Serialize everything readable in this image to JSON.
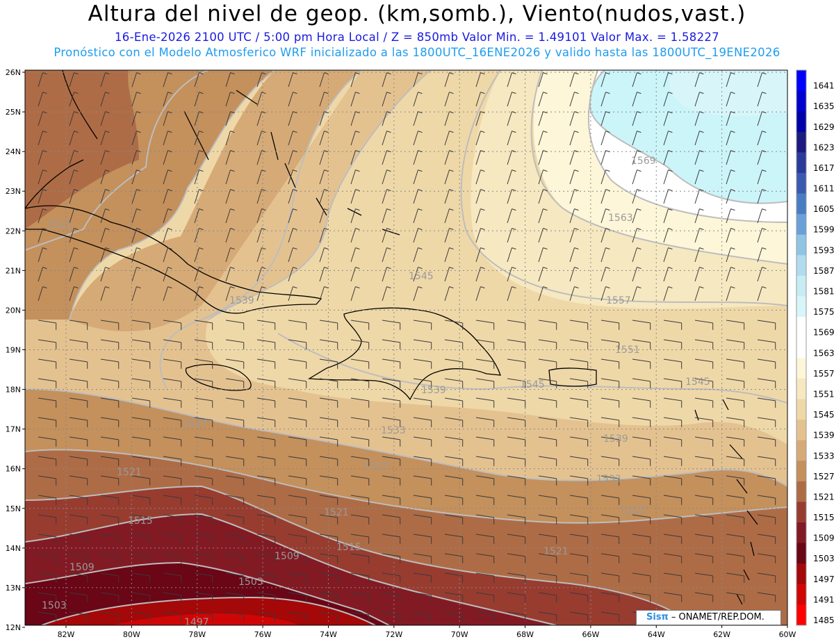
{
  "header": {
    "title": "Altura del nivel de geop. (km,somb.), Viento(nudos,vast.)",
    "line1": "16-Ene-2026  2100 UTC / 5:00 pm Hora Local / Z = 850mb     Valor Min. = 1.49101  Valor Max. = 1.58227",
    "line2": "Pronóstico con el Modelo Atmosferico WRF inicializado a las 1800UTC_16ENE2026 y valido hasta las  1800UTC_19ENE2026"
  },
  "map": {
    "lat_labels": [
      "26N",
      "25N",
      "24N",
      "23N",
      "22N",
      "21N",
      "20N",
      "19N",
      "18N",
      "17N",
      "16N",
      "15N",
      "14N",
      "13N",
      "12N"
    ],
    "lon_labels": [
      "82W",
      "80W",
      "78W",
      "76W",
      "74W",
      "72W",
      "70W",
      "68W",
      "66W",
      "64W",
      "62W",
      "60W"
    ],
    "contour_labels": [
      "1569",
      "1563",
      "1557",
      "1551",
      "1545",
      "1545",
      "1545",
      "1539",
      "1539",
      "1539",
      "1533",
      "1533",
      "1527",
      "1527",
      "1527",
      "1521",
      "1521",
      "1521",
      "1521",
      "1515",
      "1515",
      "1509",
      "1509",
      "1503",
      "1503",
      "1497"
    ],
    "wind_unit": "nudos",
    "colors": {
      "ocean_shades": [
        "#fffde8",
        "#f6ecc6",
        "#ead4a4",
        "#d9b480",
        "#c89462",
        "#b0714a",
        "#9a4a38",
        "#7e1b2a",
        "#6b0a1c",
        "#9e0e10",
        "#cc1010"
      ],
      "contour_line": "#bdbdbd",
      "coast_line": "#000000",
      "cyan_region": "#ccf5fa"
    }
  },
  "colorbar": {
    "labels": [
      "1641",
      "1635",
      "1629",
      "1623",
      "1617",
      "1611",
      "1605",
      "1599",
      "1593",
      "1587",
      "1581",
      "1575",
      "1569",
      "1563",
      "1557",
      "1551",
      "1545",
      "1539",
      "1533",
      "1527",
      "1521",
      "1515",
      "1509",
      "1503",
      "1497",
      "1491",
      "1485"
    ],
    "colors": [
      "#0000ff",
      "#0000d0",
      "#0000a8",
      "#1a1a80",
      "#2a3a9c",
      "#3a5ab0",
      "#4a7cc4",
      "#6aa0d8",
      "#90c4e4",
      "#b0dcee",
      "#c8ecf4",
      "#d8f6fa",
      "#ffffff",
      "#ffffff",
      "#fdf6d8",
      "#f6e8c0",
      "#efd8a8",
      "#e4c290",
      "#d6aa76",
      "#c4905c",
      "#ae6c46",
      "#983c30",
      "#821a24",
      "#6a0616",
      "#a40808",
      "#d00606",
      "#ff0000"
    ]
  },
  "credit": {
    "logo": "Sisπ",
    "org": "– ONAMET/REP.DOM."
  }
}
